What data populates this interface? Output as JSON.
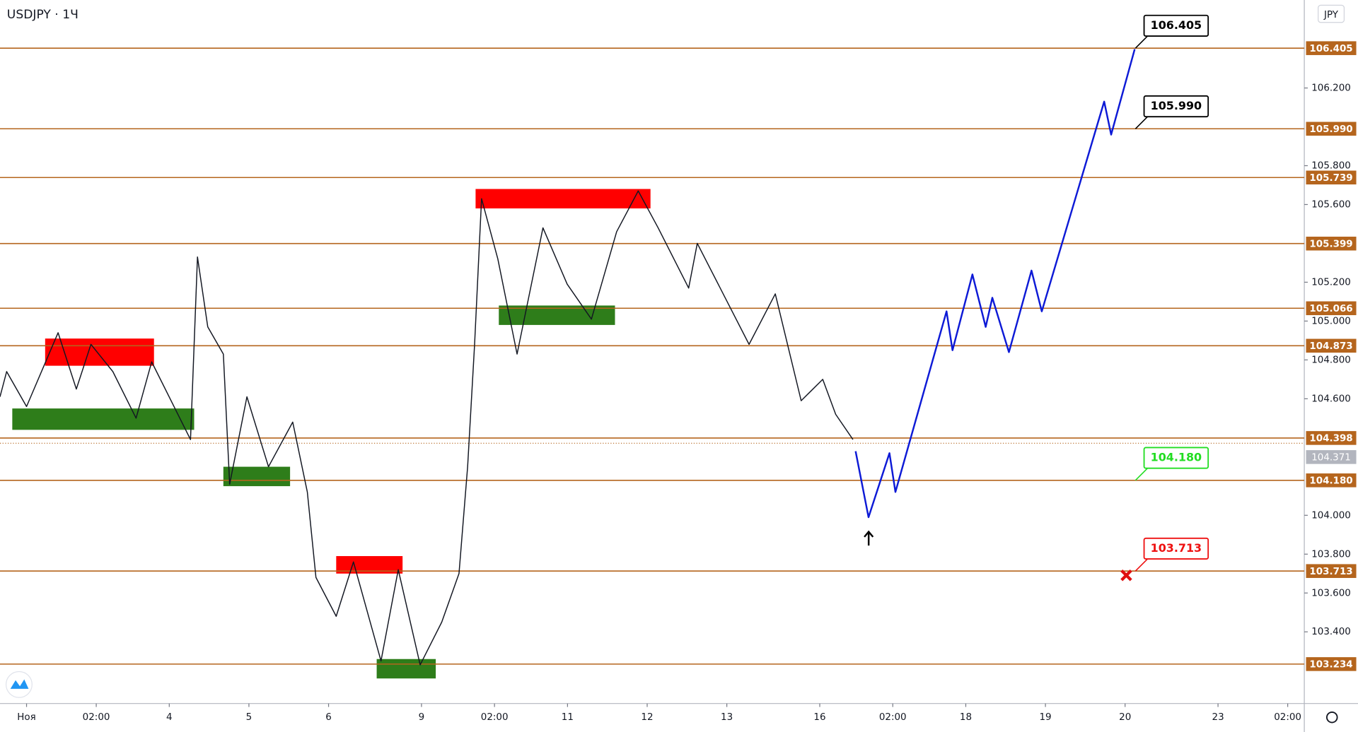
{
  "chart_data": {
    "type": "line",
    "title": "USDJPY · 1Ч",
    "currency": "JPY",
    "ylim": [
      103.031,
      106.653
    ],
    "yticks": [
      {
        "value": 103.4,
        "label": "103.400"
      },
      {
        "value": 103.6,
        "label": "103.600"
      },
      {
        "value": 103.8,
        "label": "103.800"
      },
      {
        "value": 104.0,
        "label": "104.000"
      },
      {
        "value": 104.6,
        "label": "104.600"
      },
      {
        "value": 104.8,
        "label": "104.800"
      },
      {
        "value": 105.0,
        "label": "105.000"
      },
      {
        "value": 105.2,
        "label": "105.200"
      },
      {
        "value": 105.6,
        "label": "105.600"
      },
      {
        "value": 105.8,
        "label": "105.800"
      },
      {
        "value": 106.2,
        "label": "106.200"
      }
    ],
    "xlim": [
      0,
      393
    ],
    "xticks": [
      {
        "value": 8,
        "label": "Ноя"
      },
      {
        "value": 29,
        "label": "02:00"
      },
      {
        "value": 51,
        "label": "4"
      },
      {
        "value": 75,
        "label": "5"
      },
      {
        "value": 99,
        "label": "6"
      },
      {
        "value": 127,
        "label": "9"
      },
      {
        "value": 149,
        "label": "02:00"
      },
      {
        "value": 171,
        "label": "11"
      },
      {
        "value": 195,
        "label": "12"
      },
      {
        "value": 219,
        "label": "13"
      },
      {
        "value": 247,
        "label": "16"
      },
      {
        "value": 269,
        "label": "02:00"
      },
      {
        "value": 291,
        "label": "18"
      },
      {
        "value": 315,
        "label": "19"
      },
      {
        "value": 339,
        "label": "20"
      },
      {
        "value": 367,
        "label": "23"
      },
      {
        "value": 388,
        "label": "02:00"
      }
    ],
    "grid": false,
    "series": [
      {
        "color": "#131722",
        "x": [
          0,
          2,
          8,
          17.5,
          23,
          27.4,
          34,
          41,
          45.7,
          57.4,
          59.5,
          62.6,
          67.3,
          69.2,
          74.4,
          80.9,
          88.2,
          92.6,
          95.2,
          101.3,
          106.5,
          114.8,
          120,
          126.6,
          133.1,
          138.3,
          140.9,
          143,
          145.1,
          150,
          155.8,
          163.6,
          170.9,
          178.2,
          185.8,
          192.3,
          198.3,
          207.5,
          210.1,
          225.7,
          233.6,
          241.4,
          247.9,
          251.8,
          257
        ],
        "values": [
          104.61,
          104.74,
          104.56,
          104.94,
          104.65,
          104.88,
          104.74,
          104.5,
          104.79,
          104.39,
          105.33,
          104.97,
          104.83,
          104.16,
          104.61,
          104.25,
          104.48,
          104.12,
          103.68,
          103.48,
          103.76,
          103.25,
          103.72,
          103.23,
          103.45,
          103.7,
          104.25,
          104.88,
          105.63,
          105.32,
          104.83,
          105.48,
          105.19,
          105.01,
          105.46,
          105.67,
          105.48,
          105.17,
          105.4,
          104.88,
          105.14,
          104.59,
          104.7,
          104.52,
          104.39
        ]
      },
      {
        "color": "#0d1ad6",
        "x": [
          257.8,
          261.7,
          268,
          269.8,
          285.2,
          287,
          293,
          297,
          299,
          304,
          310.8,
          313.9,
          332.7,
          334.8,
          341.9
        ],
        "values": [
          104.33,
          103.99,
          104.32,
          104.12,
          105.05,
          104.85,
          105.24,
          104.97,
          105.12,
          104.84,
          105.26,
          105.05,
          106.13,
          105.96,
          106.4
        ]
      }
    ],
    "levels": {
      "color": "#b5651d",
      "values": [
        106.405,
        105.99,
        105.739,
        105.399,
        105.066,
        104.873,
        104.398,
        104.18,
        103.713,
        103.234
      ],
      "value_labels": [
        "106.405",
        "105.990",
        "105.739",
        "105.399",
        "105.066",
        "104.873",
        "104.398",
        "104.180",
        "103.713",
        "103.234"
      ]
    },
    "last_price": {
      "value": 104.371,
      "label": "104.371"
    },
    "zones": [
      {
        "color": "#ff0000",
        "x": [
          13.6,
          46.4
        ],
        "y": [
          104.77,
          104.91
        ]
      },
      {
        "color": "#2e7d1a",
        "x": [
          3.7,
          58.5
        ],
        "y": [
          104.44,
          104.55
        ]
      },
      {
        "color": "#2e7d1a",
        "x": [
          67.3,
          87.4
        ],
        "y": [
          104.15,
          104.25
        ]
      },
      {
        "color": "#ff0000",
        "x": [
          101.3,
          121.3
        ],
        "y": [
          103.7,
          103.79
        ]
      },
      {
        "color": "#2e7d1a",
        "x": [
          113.5,
          131.3
        ],
        "y": [
          103.16,
          103.26
        ]
      },
      {
        "color": "#ff0000",
        "x": [
          143.3,
          196
        ],
        "y": [
          105.58,
          105.68
        ]
      },
      {
        "color": "#2e7d1a",
        "x": [
          150.3,
          185.3
        ],
        "y": [
          104.98,
          105.08
        ]
      }
    ],
    "callouts": [
      {
        "value": 106.405,
        "label": "106.405",
        "color": "#000000"
      },
      {
        "value": 105.99,
        "label": "105.990",
        "color": "#000000"
      },
      {
        "value": 104.18,
        "label": "104.180",
        "color": "#22dd22"
      },
      {
        "value": 103.713,
        "label": "103.713",
        "color": "#ee1111"
      }
    ]
  }
}
